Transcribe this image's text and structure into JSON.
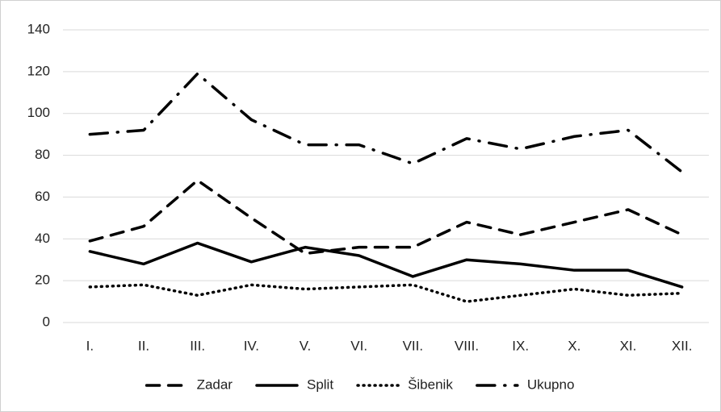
{
  "chart_data": {
    "type": "line",
    "categories": [
      "I.",
      "II.",
      "III.",
      "IV.",
      "V.",
      "VI.",
      "VII.",
      "VIII.",
      "IX.",
      "X.",
      "XI.",
      "XII."
    ],
    "series": [
      {
        "name": "Zadar",
        "color": "#000000",
        "dash": "dashed",
        "values": [
          39,
          46,
          68,
          50,
          33,
          36,
          36,
          48,
          42,
          48,
          54,
          42
        ]
      },
      {
        "name": "Split",
        "color": "#000000",
        "dash": "solid",
        "values": [
          34,
          28,
          38,
          29,
          36,
          32,
          22,
          30,
          28,
          25,
          25,
          17
        ]
      },
      {
        "name": "Šibenik",
        "color": "#000000",
        "dash": "dotted",
        "values": [
          17,
          18,
          13,
          18,
          16,
          17,
          18,
          10,
          13,
          16,
          13,
          14
        ]
      },
      {
        "name": "Ukupno",
        "color": "#000000",
        "dash": "dashdot",
        "values": [
          90,
          92,
          119,
          97,
          85,
          85,
          76,
          88,
          83,
          89,
          92,
          72
        ]
      }
    ],
    "ylim": [
      0,
      140
    ],
    "yticks": [
      0,
      20,
      40,
      60,
      80,
      100,
      120,
      140
    ],
    "grid": true,
    "legend": "bottom"
  }
}
